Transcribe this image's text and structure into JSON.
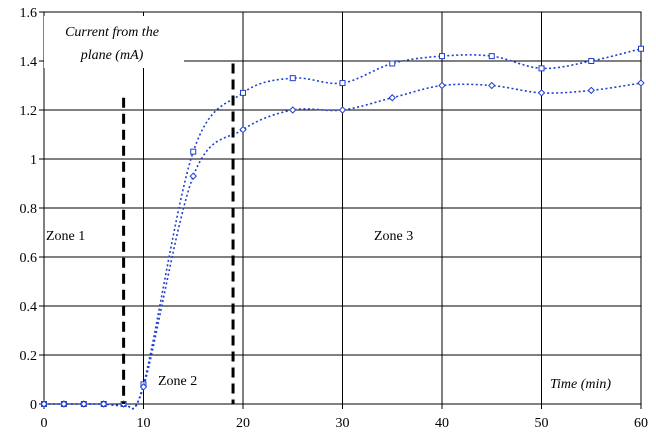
{
  "chart_data": {
    "type": "line",
    "title": "",
    "xlabel": "Time (min)",
    "ylabel": "Current from the plane (mA)",
    "xlim": [
      0,
      60
    ],
    "ylim": [
      0,
      1.6
    ],
    "x_ticks": [
      0,
      10,
      20,
      30,
      40,
      50,
      60
    ],
    "y_ticks": [
      0,
      0.2,
      0.4,
      0.6,
      0.8,
      1,
      1.2,
      1.4,
      1.6
    ],
    "x_tick_labels": [
      "0",
      "10",
      "20",
      "30",
      "40",
      "50",
      "60"
    ],
    "y_tick_labels": [
      "0",
      "0.2",
      "0.4",
      "0.6",
      "0.8",
      "1",
      "1.2",
      "1.4",
      "1.6"
    ],
    "grid": true,
    "series": [
      {
        "color": "#1f3fd0",
        "line_style": "dotted",
        "marker": "open-square",
        "x": [
          0,
          2,
          4,
          6,
          8,
          10,
          15,
          20,
          25,
          30,
          35,
          40,
          45,
          50,
          55,
          60
        ],
        "y": [
          0,
          0,
          0,
          0,
          0,
          0.08,
          1.03,
          1.27,
          1.33,
          1.31,
          1.39,
          1.42,
          1.42,
          1.37,
          1.4,
          1.45
        ]
      },
      {
        "color": "#1f3fd0",
        "line_style": "dotted",
        "marker": "open-diamond",
        "x": [
          0,
          2,
          4,
          6,
          8,
          10,
          15,
          20,
          25,
          30,
          35,
          40,
          45,
          50,
          55,
          60
        ],
        "y": [
          0,
          0,
          0,
          0,
          0,
          0.07,
          0.93,
          1.12,
          1.2,
          1.2,
          1.25,
          1.3,
          1.3,
          1.27,
          1.28,
          1.31
        ]
      }
    ],
    "zone_boundaries": [
      {
        "x": 8,
        "y_top": 1.25
      },
      {
        "x": 19,
        "y_top": 1.39
      }
    ],
    "annotations": {
      "zone1": "Zone 1",
      "zone2": "Zone 2",
      "zone3": "Zone 3",
      "ylabel_line1": "Current from the",
      "ylabel_line2": "plane (mA)",
      "xlabel": "Time (min)"
    }
  }
}
